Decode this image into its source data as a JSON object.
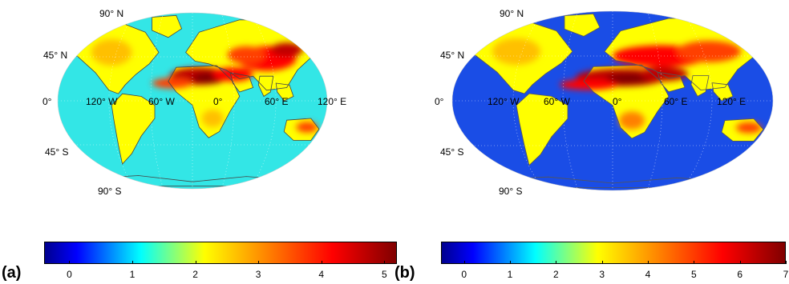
{
  "panels": [
    {
      "id": "a",
      "letter": "(a)",
      "lat_labels": [
        "90° N",
        "45° N",
        "0°",
        "45° S",
        "90° S"
      ],
      "lon_labels": [
        "120° W",
        "60° W",
        "0°",
        "60° E",
        "120° E"
      ],
      "colorbar": {
        "min": -0.4,
        "max": 5.2,
        "ticks": [
          "0",
          "1",
          "2",
          "3",
          "4",
          "5"
        ],
        "tick_values": [
          0,
          1,
          2,
          3,
          4,
          5
        ]
      },
      "ocean_color": "#33e6e6"
    },
    {
      "id": "b",
      "letter": "(b)",
      "lat_labels": [
        "90° N",
        "45° N",
        "0°",
        "45° S",
        "90° S"
      ],
      "lon_labels": [
        "120° W",
        "60° W",
        "0°",
        "60° E",
        "120° E"
      ],
      "colorbar": {
        "min": -0.5,
        "max": 7.0,
        "ticks": [
          "0",
          "1",
          "2",
          "3",
          "4",
          "5",
          "6",
          "7"
        ],
        "tick_values": [
          0,
          1,
          2,
          3,
          4,
          5,
          6,
          7
        ]
      },
      "ocean_color": "#1a4de6"
    }
  ],
  "colormap": [
    "#00008f",
    "#0000ff",
    "#0080ff",
    "#00ffff",
    "#80ff80",
    "#ffff00",
    "#ffc000",
    "#ff8000",
    "#ff4000",
    "#ff0000",
    "#c00000",
    "#800000"
  ]
}
